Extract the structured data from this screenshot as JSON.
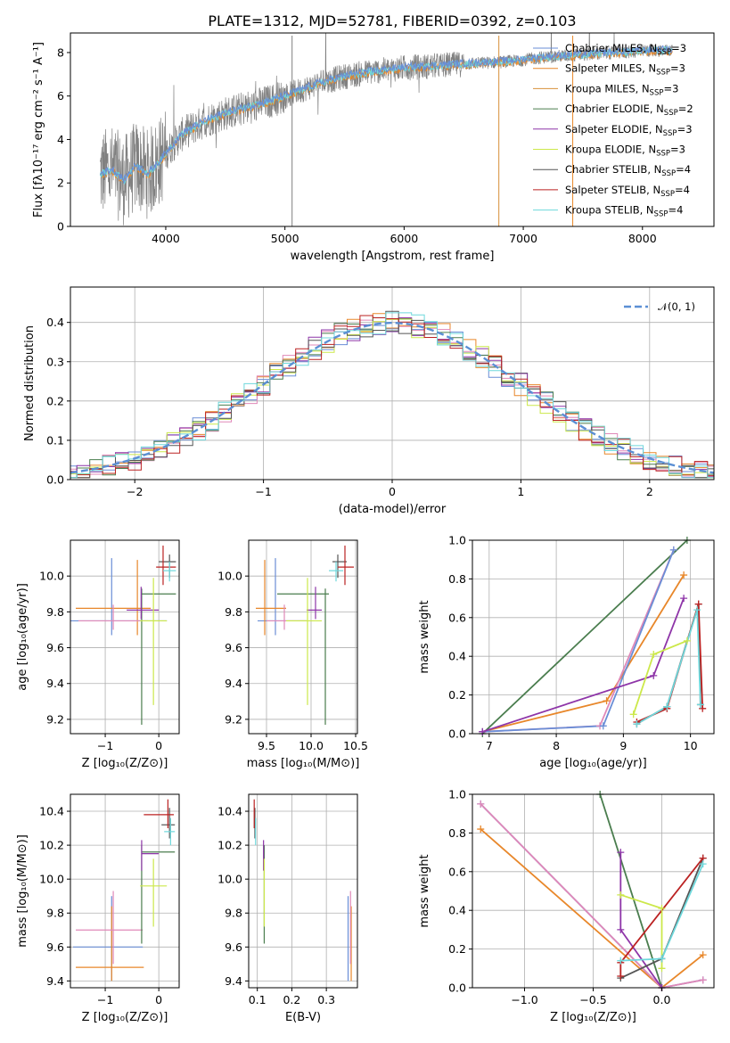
{
  "title": "PLATE=1312, MJD=52781, FIBERID=0392, z=0.103",
  "colors": {
    "chabrier_miles": "#6a8ed6",
    "salpeter_miles": "#e8872a",
    "kroupa_miles": "#d8903a",
    "chabrier_elodie": "#4a7d4e",
    "salpeter_elodie": "#8e35a8",
    "kroupa_elodie": "#cce84a",
    "chabrier_stelib": "#555555",
    "salpeter_stelib": "#bb2222",
    "kroupa_stelib": "#6ed8dc",
    "pink": "#e088b8",
    "data": "#808080",
    "gauss": "#5b8fd4"
  },
  "chart_data": [
    {
      "id": "spectrum",
      "type": "line",
      "xlabel": "wavelength [Angstrom, rest frame]",
      "ylabel": "Flux [fλ10⁻¹⁷ erg cm⁻² s⁻¹ A⁻¹]",
      "xlim": [
        3200,
        8600
      ],
      "ylim": [
        0,
        8.9
      ],
      "xticks": [
        4000,
        5000,
        6000,
        7000,
        8000
      ],
      "yticks": [
        0,
        2,
        4,
        6,
        8
      ],
      "legend_position": "top-right",
      "legend": [
        {
          "label": "Chabrier MILES, N",
          "sub": "SSP",
          "tail": "=3",
          "color": "chabrier_miles"
        },
        {
          "label": "Salpeter MILES, N",
          "sub": "SSP",
          "tail": "=3",
          "color": "salpeter_miles"
        },
        {
          "label": "Kroupa MILES, N",
          "sub": "SSP",
          "tail": "=3",
          "color": "kroupa_miles"
        },
        {
          "label": "Chabrier ELODIE, N",
          "sub": "SSP",
          "tail": "=2",
          "color": "chabrier_elodie"
        },
        {
          "label": "Salpeter ELODIE, N",
          "sub": "SSP",
          "tail": "=3",
          "color": "salpeter_elodie"
        },
        {
          "label": "Kroupa ELODIE, N",
          "sub": "SSP",
          "tail": "=3",
          "color": "kroupa_elodie"
        },
        {
          "label": "Chabrier STELIB, N",
          "sub": "SSP",
          "tail": "=4",
          "color": "chabrier_stelib"
        },
        {
          "label": "Salpeter STELIB, N",
          "sub": "SSP",
          "tail": "=4",
          "color": "salpeter_stelib"
        },
        {
          "label": "Kroupa STELIB, N",
          "sub": "SSP",
          "tail": "=4",
          "color": "kroupa_stelib"
        }
      ],
      "continuum": [
        [
          3450,
          2.4
        ],
        [
          3550,
          2.6
        ],
        [
          3650,
          2.1
        ],
        [
          3750,
          2.8
        ],
        [
          3850,
          2.4
        ],
        [
          3950,
          3.0
        ],
        [
          4050,
          3.7
        ],
        [
          4150,
          4.3
        ],
        [
          4250,
          4.6
        ],
        [
          4350,
          4.9
        ],
        [
          4500,
          5.2
        ],
        [
          4700,
          5.5
        ],
        [
          4900,
          5.8
        ],
        [
          5100,
          6.2
        ],
        [
          5300,
          6.6
        ],
        [
          5500,
          6.9
        ],
        [
          5700,
          7.1
        ],
        [
          6000,
          7.3
        ],
        [
          6300,
          7.4
        ],
        [
          6600,
          7.5
        ],
        [
          6900,
          7.6
        ],
        [
          7200,
          7.8
        ],
        [
          7500,
          7.9
        ],
        [
          7800,
          8.0
        ],
        [
          8100,
          8.1
        ],
        [
          8250,
          8.1
        ]
      ]
    },
    {
      "id": "residual_hist",
      "type": "histogram",
      "xlabel": "(data-model)/error",
      "ylabel": "Normed distribution",
      "xlim": [
        -2.5,
        2.5
      ],
      "ylim": [
        0,
        0.49
      ],
      "xticks": [
        -2,
        -1,
        0,
        1,
        2
      ],
      "xtick_labels": [
        "−2",
        "−1",
        "0",
        "1",
        "2"
      ],
      "yticks": [
        0.0,
        0.1,
        0.2,
        0.3,
        0.4
      ],
      "ytick_labels": [
        "0.0",
        "0.1",
        "0.2",
        "0.3",
        "0.4"
      ],
      "grid": true,
      "legend_position": "top-right",
      "legend": [
        {
          "label": "𝒩(0, 1)",
          "color": "gauss"
        }
      ],
      "bin_width": 0.1
    },
    {
      "id": "age_vs_Z",
      "type": "errorbar",
      "xlabel": "Z [log₁₀(Z/Z⊙)]",
      "ylabel": "age  [log₁₀(age/yr)]",
      "xlim": [
        -1.65,
        0.38
      ],
      "ylim": [
        9.12,
        10.2
      ],
      "xticks": [
        -1,
        0
      ],
      "xtick_labels": [
        "−1",
        "0"
      ],
      "yticks": [
        9.2,
        9.4,
        9.6,
        9.8,
        10.0
      ],
      "ytick_labels": [
        "9.2",
        "9.4",
        "9.6",
        "9.8",
        "10.0"
      ],
      "grid": true,
      "points": [
        {
          "color": "chabrier_miles",
          "x": -0.88,
          "y": 9.75,
          "xlo": -1.65,
          "xhi": 0.15,
          "ylo": 9.67,
          "yhi": 10.1
        },
        {
          "color": "salpeter_miles",
          "x": -0.4,
          "y": 9.82,
          "xlo": -1.55,
          "xhi": -0.15,
          "ylo": 9.67,
          "yhi": 10.09
        },
        {
          "color": "pink",
          "x": -0.85,
          "y": 9.75,
          "xlo": -1.5,
          "xhi": -0.2,
          "ylo": 9.7,
          "yhi": 9.84
        },
        {
          "color": "chabrier_elodie",
          "x": -0.32,
          "y": 9.9,
          "xlo": -0.32,
          "xhi": 0.32,
          "ylo": 9.17,
          "yhi": 9.93
        },
        {
          "color": "salpeter_elodie",
          "x": -0.33,
          "y": 9.81,
          "xlo": -0.6,
          "xhi": 0.0,
          "ylo": 9.76,
          "yhi": 9.94
        },
        {
          "color": "kroupa_elodie",
          "x": -0.1,
          "y": 9.75,
          "xlo": -0.35,
          "xhi": 0.15,
          "ylo": 9.28,
          "yhi": 9.99
        },
        {
          "color": "chabrier_stelib",
          "x": 0.2,
          "y": 10.08,
          "xlo": 0.0,
          "xhi": 0.32,
          "ylo": 9.99,
          "yhi": 10.12
        },
        {
          "color": "salpeter_stelib",
          "x": 0.08,
          "y": 10.05,
          "xlo": -0.05,
          "xhi": 0.32,
          "ylo": 9.95,
          "yhi": 10.17
        },
        {
          "color": "kroupa_stelib",
          "x": 0.2,
          "y": 10.03,
          "xlo": 0.08,
          "xhi": 0.32,
          "ylo": 9.97,
          "yhi": 10.08
        }
      ]
    },
    {
      "id": "age_vs_mass",
      "type": "errorbar",
      "xlabel": "mass [log₁₀(M/M⊙)]",
      "ylabel": "",
      "xlim": [
        9.3,
        10.52
      ],
      "ylim": [
        9.12,
        10.2
      ],
      "xticks": [
        9.5,
        10.0,
        10.5
      ],
      "xtick_labels": [
        "9.5",
        "10.0",
        "10.5"
      ],
      "yticks": [
        9.2,
        9.4,
        9.6,
        9.8,
        10.0
      ],
      "ytick_labels": [
        "9.2",
        "9.4",
        "9.6",
        "9.8",
        "10.0"
      ],
      "grid": true,
      "points": [
        {
          "color": "chabrier_miles",
          "x": 9.6,
          "y": 9.75,
          "xlo": 9.4,
          "xhi": 9.95,
          "ylo": 9.67,
          "yhi": 10.1
        },
        {
          "color": "salpeter_miles",
          "x": 9.48,
          "y": 9.82,
          "xlo": 9.38,
          "xhi": 9.72,
          "ylo": 9.67,
          "yhi": 10.09
        },
        {
          "color": "pink",
          "x": 9.7,
          "y": 9.75,
          "xlo": 9.5,
          "xhi": 9.95,
          "ylo": 9.7,
          "yhi": 9.84
        },
        {
          "color": "chabrier_elodie",
          "x": 10.16,
          "y": 9.9,
          "xlo": 9.62,
          "xhi": 10.2,
          "ylo": 9.17,
          "yhi": 9.93
        },
        {
          "color": "salpeter_elodie",
          "x": 10.05,
          "y": 9.81,
          "xlo": 9.95,
          "xhi": 10.12,
          "ylo": 9.76,
          "yhi": 9.94
        },
        {
          "color": "kroupa_elodie",
          "x": 9.96,
          "y": 9.75,
          "xlo": 9.72,
          "xhi": 10.12,
          "ylo": 9.28,
          "yhi": 9.99
        },
        {
          "color": "chabrier_stelib",
          "x": 10.3,
          "y": 10.08,
          "xlo": 10.24,
          "xhi": 10.4,
          "ylo": 9.99,
          "yhi": 10.12
        },
        {
          "color": "salpeter_stelib",
          "x": 10.38,
          "y": 10.05,
          "xlo": 10.3,
          "xhi": 10.48,
          "ylo": 9.95,
          "yhi": 10.17
        },
        {
          "color": "kroupa_stelib",
          "x": 10.28,
          "y": 10.03,
          "xlo": 10.2,
          "xhi": 10.36,
          "ylo": 9.97,
          "yhi": 10.08
        }
      ]
    },
    {
      "id": "weight_vs_age",
      "type": "line",
      "xlabel": "age  [log₁₀(age/yr)]",
      "ylabel": "mass weight",
      "xlim": [
        6.75,
        10.35
      ],
      "ylim": [
        0,
        1.0
      ],
      "xticks": [
        7,
        8,
        9,
        10
      ],
      "xtick_labels": [
        "7",
        "8",
        "9",
        "10"
      ],
      "yticks": [
        0.0,
        0.2,
        0.4,
        0.6,
        0.8,
        1.0
      ],
      "ytick_labels": [
        "0.0",
        "0.2",
        "0.4",
        "0.6",
        "0.8",
        "1.0"
      ],
      "grid": true,
      "series": [
        {
          "color": "chabrier_elodie",
          "x": [
            6.9,
            9.95
          ],
          "y": [
            0.0,
            1.0
          ]
        },
        {
          "color": "salpeter_miles",
          "x": [
            6.9,
            8.75,
            9.9
          ],
          "y": [
            0.01,
            0.17,
            0.82
          ]
        },
        {
          "color": "pink",
          "x": [
            6.9,
            8.65,
            9.75
          ],
          "y": [
            0.01,
            0.04,
            0.95
          ]
        },
        {
          "color": "chabrier_miles",
          "x": [
            6.9,
            8.7,
            9.75
          ],
          "y": [
            0.01,
            0.04,
            0.95
          ]
        },
        {
          "color": "salpeter_elodie",
          "x": [
            6.9,
            9.45,
            9.9
          ],
          "y": [
            0.01,
            0.3,
            0.7
          ]
        },
        {
          "color": "kroupa_elodie",
          "x": [
            9.15,
            9.45,
            9.95
          ],
          "y": [
            0.1,
            0.41,
            0.48
          ]
        },
        {
          "color": "chabrier_stelib",
          "x": [
            9.2,
            9.65,
            10.12,
            10.15
          ],
          "y": [
            0.05,
            0.14,
            0.67,
            0.15
          ]
        },
        {
          "color": "salpeter_stelib",
          "x": [
            9.2,
            9.65,
            10.12,
            10.18
          ],
          "y": [
            0.06,
            0.13,
            0.67,
            0.13
          ]
        },
        {
          "color": "kroupa_stelib",
          "x": [
            9.2,
            9.65,
            10.1,
            10.15
          ],
          "y": [
            0.05,
            0.14,
            0.64,
            0.15
          ]
        }
      ]
    },
    {
      "id": "mass_vs_Z",
      "type": "errorbar",
      "xlabel": "Z [log₁₀(Z/Z⊙)]",
      "ylabel": "mass [log₁₀(M/M⊙)]",
      "xlim": [
        -1.65,
        0.38
      ],
      "ylim": [
        9.36,
        10.5
      ],
      "xticks": [
        -1,
        0
      ],
      "xtick_labels": [
        "−1",
        "0"
      ],
      "yticks": [
        9.4,
        9.6,
        9.8,
        10.0,
        10.2,
        10.4
      ],
      "ytick_labels": [
        "9.4",
        "9.6",
        "9.8",
        "10.0",
        "10.2",
        "10.4"
      ],
      "grid": true,
      "points": [
        {
          "color": "chabrier_miles",
          "x": -0.88,
          "y": 9.6,
          "xlo": -1.6,
          "xhi": -0.3,
          "ylo": 9.4,
          "yhi": 9.9
        },
        {
          "color": "salpeter_miles",
          "x": -0.88,
          "y": 9.48,
          "xlo": -1.55,
          "xhi": -0.28,
          "ylo": 9.4,
          "yhi": 9.84
        },
        {
          "color": "pink",
          "x": -0.85,
          "y": 9.7,
          "xlo": -1.55,
          "xhi": -0.3,
          "ylo": 9.5,
          "yhi": 9.93
        },
        {
          "color": "chabrier_elodie",
          "x": -0.32,
          "y": 10.16,
          "xlo": -0.32,
          "xhi": 0.3,
          "ylo": 9.62,
          "yhi": 10.2
        },
        {
          "color": "salpeter_elodie",
          "x": -0.32,
          "y": 10.15,
          "xlo": -0.32,
          "xhi": 0.0,
          "ylo": 10.05,
          "yhi": 10.23
        },
        {
          "color": "kroupa_elodie",
          "x": -0.1,
          "y": 9.96,
          "xlo": -0.35,
          "xhi": 0.15,
          "ylo": 9.72,
          "yhi": 10.12
        },
        {
          "color": "chabrier_stelib",
          "x": 0.2,
          "y": 10.32,
          "xlo": 0.05,
          "xhi": 0.3,
          "ylo": 10.24,
          "yhi": 10.42
        },
        {
          "color": "salpeter_stelib",
          "x": 0.17,
          "y": 10.38,
          "xlo": -0.28,
          "xhi": 0.28,
          "ylo": 10.3,
          "yhi": 10.47
        },
        {
          "color": "kroupa_stelib",
          "x": 0.22,
          "y": 10.28,
          "xlo": 0.1,
          "xhi": 0.3,
          "ylo": 10.2,
          "yhi": 10.36
        }
      ]
    },
    {
      "id": "mass_vs_ebv",
      "type": "errorbar",
      "xlabel": "E(B-V)",
      "ylabel": "",
      "xlim": [
        0.075,
        0.39
      ],
      "ylim": [
        9.36,
        10.5
      ],
      "xticks": [
        0.1,
        0.2,
        0.3
      ],
      "xtick_labels": [
        "0.1",
        "0.2",
        "0.3"
      ],
      "yticks": [
        9.4,
        9.6,
        9.8,
        10.0,
        10.2,
        10.4
      ],
      "ytick_labels": [
        "9.4",
        "9.6",
        "9.8",
        "10.0",
        "10.2",
        "10.4"
      ],
      "grid": true,
      "points": [
        {
          "color": "chabrier_miles",
          "x": 0.363,
          "y": 9.6,
          "ylo": 9.4,
          "yhi": 9.9
        },
        {
          "color": "salpeter_miles",
          "x": 0.372,
          "y": 9.48,
          "ylo": 9.4,
          "yhi": 9.84
        },
        {
          "color": "pink",
          "x": 0.37,
          "y": 9.7,
          "ylo": 9.5,
          "yhi": 9.93
        },
        {
          "color": "chabrier_elodie",
          "x": 0.12,
          "y": 10.16,
          "ylo": 9.62,
          "yhi": 10.2
        },
        {
          "color": "salpeter_elodie",
          "x": 0.118,
          "y": 10.15,
          "ylo": 10.05,
          "yhi": 10.23
        },
        {
          "color": "kroupa_elodie",
          "x": 0.12,
          "y": 9.96,
          "ylo": 9.72,
          "yhi": 10.12
        },
        {
          "color": "chabrier_stelib",
          "x": 0.093,
          "y": 10.32,
          "ylo": 10.24,
          "yhi": 10.42
        },
        {
          "color": "salpeter_stelib",
          "x": 0.091,
          "y": 10.38,
          "ylo": 10.3,
          "yhi": 10.47
        },
        {
          "color": "kroupa_stelib",
          "x": 0.095,
          "y": 10.28,
          "ylo": 10.2,
          "yhi": 10.36
        }
      ]
    },
    {
      "id": "weight_vs_Z",
      "type": "line",
      "xlabel": "Z [log₁₀(Z/Z⊙)]",
      "ylabel": "mass weight",
      "xlim": [
        -1.38,
        0.38
      ],
      "ylim": [
        0,
        1.0
      ],
      "xticks": [
        -1.0,
        -0.5,
        0.0
      ],
      "xtick_labels": [
        "−1.0",
        "−0.5",
        "0.0"
      ],
      "yticks": [
        0.0,
        0.2,
        0.4,
        0.6,
        0.8,
        1.0
      ],
      "ytick_labels": [
        "0.0",
        "0.2",
        "0.4",
        "0.6",
        "0.8",
        "1.0"
      ],
      "grid": true,
      "series": [
        {
          "color": "salpeter_miles",
          "x": [
            -1.32,
            0.0,
            0.3
          ],
          "y": [
            0.82,
            0.0,
            0.17
          ]
        },
        {
          "color": "chabrier_miles",
          "x": [
            -1.32,
            0.0,
            0.3
          ],
          "y": [
            0.95,
            0.0,
            0.04
          ]
        },
        {
          "color": "pink",
          "x": [
            -1.32,
            0.0,
            0.3
          ],
          "y": [
            0.95,
            0.0,
            0.04
          ]
        },
        {
          "color": "chabrier_elodie",
          "x": [
            -0.45,
            0.0
          ],
          "y": [
            1.0,
            0.0
          ]
        },
        {
          "color": "salpeter_elodie",
          "x": [
            -0.3,
            -0.3,
            0.0
          ],
          "y": [
            0.7,
            0.3,
            0.0
          ]
        },
        {
          "color": "kroupa_elodie",
          "x": [
            -0.3,
            0.0,
            0.0
          ],
          "y": [
            0.48,
            0.41,
            0.1
          ]
        },
        {
          "color": "chabrier_stelib",
          "x": [
            -0.3,
            0.0,
            0.3
          ],
          "y": [
            0.05,
            0.15,
            0.67
          ]
        },
        {
          "color": "salpeter_stelib",
          "x": [
            -0.3,
            -0.3,
            0.3
          ],
          "y": [
            0.06,
            0.13,
            0.67
          ]
        },
        {
          "color": "kroupa_stelib",
          "x": [
            -0.3,
            0.0,
            0.3
          ],
          "y": [
            0.14,
            0.15,
            0.64
          ]
        }
      ]
    }
  ]
}
